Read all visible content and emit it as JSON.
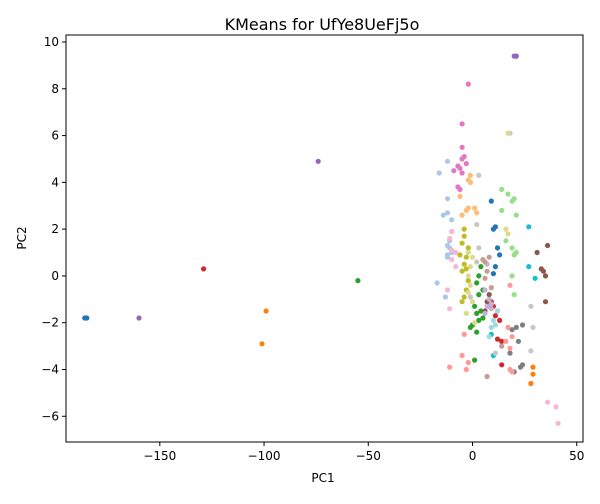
{
  "chart_data": {
    "type": "scatter",
    "title": "KMeans for UfYe8UeFj5o",
    "xlabel": "PC1",
    "ylabel": "PC2",
    "xlim": [
      -195,
      53
    ],
    "ylim": [
      -7.1,
      10.3
    ],
    "xticks": [
      -150,
      -100,
      -50,
      0,
      50
    ],
    "yticks": [
      -6,
      -4,
      -2,
      0,
      2,
      4,
      6,
      8,
      10
    ],
    "grid": false,
    "legend": "none",
    "clusters": [
      {
        "color": "#1f77b4",
        "points": [
          [
            -186,
            -1.8
          ],
          [
            -185,
            -1.8
          ],
          [
            9,
            3.2
          ],
          [
            10,
            2.0
          ],
          [
            11,
            2.1
          ],
          [
            12,
            1.2
          ],
          [
            13,
            0.9
          ],
          [
            11,
            0.4
          ],
          [
            10,
            0.1
          ]
        ]
      },
      {
        "color": "#ff7f0e",
        "points": [
          [
            -99,
            -1.5
          ],
          [
            -101,
            -2.9
          ],
          [
            29,
            -3.9
          ],
          [
            29,
            -4.2
          ],
          [
            28,
            -4.6
          ]
        ]
      },
      {
        "color": "#2ca02c",
        "points": [
          [
            -55,
            -0.2
          ],
          [
            2,
            -0.3
          ],
          [
            3,
            -0.8
          ],
          [
            1,
            -1.3
          ],
          [
            2,
            -1.6
          ],
          [
            3,
            -1.9
          ],
          [
            4,
            -1.5
          ],
          [
            5,
            -1.8
          ],
          [
            2,
            -2.4
          ],
          [
            0,
            -2.1
          ],
          [
            -1,
            -2.2
          ],
          [
            1,
            -3.6
          ],
          [
            3,
            0.0
          ],
          [
            4,
            0.4
          ],
          [
            5,
            -0.6
          ]
        ]
      },
      {
        "color": "#d62728",
        "points": [
          [
            -129,
            0.3
          ],
          [
            10,
            -1.3
          ],
          [
            12,
            -1.5
          ],
          [
            11,
            -1.7
          ],
          [
            13,
            -1.9
          ],
          [
            12,
            -2.7
          ],
          [
            14,
            -2.8
          ],
          [
            14,
            -3.8
          ],
          [
            9,
            -1.1
          ]
        ]
      },
      {
        "color": "#9467bd",
        "points": [
          [
            -160,
            -1.8
          ],
          [
            -74,
            4.9
          ],
          [
            20,
            9.4
          ],
          [
            21,
            9.4
          ]
        ]
      },
      {
        "color": "#8c564b",
        "points": [
          [
            7,
            -1.1
          ],
          [
            8,
            -1.3
          ],
          [
            6,
            -1.5
          ],
          [
            8,
            -0.8
          ],
          [
            33,
            0.3
          ],
          [
            34,
            0.2
          ],
          [
            35,
            0.0
          ],
          [
            36,
            1.3
          ],
          [
            35,
            -1.1
          ],
          [
            31,
            1.0
          ]
        ]
      },
      {
        "color": "#e377c2",
        "points": [
          [
            -2,
            8.2
          ],
          [
            -5,
            6.5
          ],
          [
            -5,
            5.5
          ],
          [
            -5,
            5.0
          ],
          [
            -4,
            5.1
          ],
          [
            -3,
            4.8
          ],
          [
            -7,
            4.7
          ],
          [
            -6,
            4.6
          ],
          [
            -9,
            4.5
          ],
          [
            -5,
            4.4
          ],
          [
            -6,
            3.7
          ],
          [
            -7,
            3.8
          ]
        ]
      },
      {
        "color": "#7f7f7f",
        "points": [
          [
            21,
            -2.2
          ],
          [
            24,
            -2.1
          ],
          [
            22,
            -2.8
          ],
          [
            18,
            -3.3
          ],
          [
            24,
            -3.8
          ],
          [
            23,
            -3.9
          ],
          [
            20,
            -4.1
          ],
          [
            19,
            -2.3
          ]
        ]
      },
      {
        "color": "#bcbd22",
        "points": [
          [
            -4,
            2.0
          ],
          [
            -5,
            1.4
          ],
          [
            -4,
            1.7
          ],
          [
            -3,
            0.8
          ],
          [
            -4,
            0.5
          ],
          [
            -5,
            0.2
          ],
          [
            -3,
            0.3
          ],
          [
            -2,
            -0.2
          ],
          [
            -3,
            -0.6
          ],
          [
            -4,
            -0.9
          ],
          [
            -5,
            -1.1
          ],
          [
            -2,
            1.2
          ],
          [
            -6,
            0.9
          ]
        ]
      },
      {
        "color": "#17becf",
        "points": [
          [
            27,
            2.1
          ],
          [
            27,
            0.4
          ],
          [
            30,
            -0.1
          ],
          [
            9,
            -2.5
          ],
          [
            10,
            -3.4
          ]
        ]
      },
      {
        "color": "#aec7e8",
        "points": [
          [
            -16,
            4.4
          ],
          [
            -12,
            4.9
          ],
          [
            -12,
            3.3
          ],
          [
            -14,
            2.6
          ],
          [
            -12,
            2.7
          ],
          [
            -10,
            2.4
          ],
          [
            -12,
            1.3
          ],
          [
            -11,
            1.2
          ],
          [
            -10,
            1.0
          ],
          [
            -12,
            0.9
          ],
          [
            -12,
            0.8
          ],
          [
            -13,
            -0.9
          ],
          [
            -17,
            -0.3
          ],
          [
            -11,
            1.5
          ]
        ]
      },
      {
        "color": "#ffbb78",
        "points": [
          [
            -2,
            4.1
          ],
          [
            -1,
            4.3
          ],
          [
            -1,
            4.0
          ],
          [
            -2,
            2.9
          ],
          [
            -3,
            2.8
          ],
          [
            -6,
            3.4
          ],
          [
            -5,
            2.6
          ],
          [
            1,
            2.9
          ],
          [
            2,
            2.7
          ]
        ]
      },
      {
        "color": "#98df8a",
        "points": [
          [
            14,
            3.7
          ],
          [
            17,
            3.5
          ],
          [
            19,
            3.2
          ],
          [
            20,
            3.3
          ],
          [
            14,
            2.8
          ],
          [
            21,
            2.6
          ],
          [
            19,
            1.2
          ],
          [
            21,
            1.0
          ],
          [
            20,
            0.9
          ],
          [
            16,
            1.5
          ],
          [
            19,
            0.0
          ],
          [
            20,
            -0.8
          ]
        ]
      },
      {
        "color": "#ff9896",
        "points": [
          [
            -4,
            -2.5
          ],
          [
            -5,
            -3.4
          ],
          [
            -3,
            -4.0
          ],
          [
            -2,
            -3.7
          ],
          [
            -11,
            -3.9
          ],
          [
            17,
            -2.2
          ],
          [
            19,
            -2.6
          ],
          [
            18,
            -3.1
          ],
          [
            19,
            -4.1
          ],
          [
            18,
            -4.0
          ],
          [
            16,
            -2.8
          ],
          [
            18,
            -0.4
          ]
        ]
      },
      {
        "color": "#c5b0d5",
        "points": [
          [
            8,
            -1.0
          ],
          [
            7,
            -1.3
          ],
          [
            9,
            -1.2
          ],
          [
            6,
            -1.6
          ],
          [
            9,
            -1.4
          ],
          [
            6,
            -0.6
          ],
          [
            7,
            0.5
          ]
        ]
      },
      {
        "color": "#c49c94",
        "points": [
          [
            5,
            0.7
          ],
          [
            6,
            0.6
          ],
          [
            8,
            0.8
          ],
          [
            7,
            0.2
          ],
          [
            6,
            -0.1
          ],
          [
            14,
            -3.0
          ],
          [
            7,
            -4.3
          ],
          [
            9,
            -0.5
          ]
        ]
      },
      {
        "color": "#f7b6d2",
        "points": [
          [
            -10,
            1.9
          ],
          [
            -11,
            1.6
          ],
          [
            -10,
            1.1
          ],
          [
            -8,
            1.0
          ],
          [
            -12,
            -0.6
          ],
          [
            -11,
            -1.4
          ],
          [
            -10,
            0.7
          ],
          [
            36,
            -5.4
          ],
          [
            40,
            -5.6
          ],
          [
            41,
            -6.3
          ],
          [
            -8,
            0.4
          ]
        ]
      },
      {
        "color": "#c7c7c7",
        "points": [
          [
            3,
            4.3
          ],
          [
            2,
            2.2
          ],
          [
            3,
            1.2
          ],
          [
            18,
            6.1
          ],
          [
            28,
            -1.3
          ],
          [
            29,
            -2.2
          ],
          [
            28,
            -3.2
          ],
          [
            11,
            -3.3
          ],
          [
            2,
            0.6
          ],
          [
            -1,
            -0.9
          ]
        ]
      },
      {
        "color": "#dbdb8d",
        "points": [
          [
            -2,
            1.0
          ],
          [
            -1,
            0.4
          ],
          [
            -2,
            0.0
          ],
          [
            -1,
            -0.4
          ],
          [
            -2,
            -0.7
          ],
          [
            0,
            -1.1
          ],
          [
            -3,
            -1.6
          ],
          [
            1,
            -2.0
          ],
          [
            0,
            0.8
          ],
          [
            17,
            6.1
          ],
          [
            16,
            2.0
          ],
          [
            17,
            1.8
          ]
        ]
      },
      {
        "color": "#9edae5",
        "points": [
          [
            9,
            -2.2
          ],
          [
            8,
            -2.6
          ],
          [
            10,
            -1.9
          ],
          [
            11,
            -2.1
          ],
          [
            12,
            -1.5
          ]
        ]
      }
    ]
  }
}
